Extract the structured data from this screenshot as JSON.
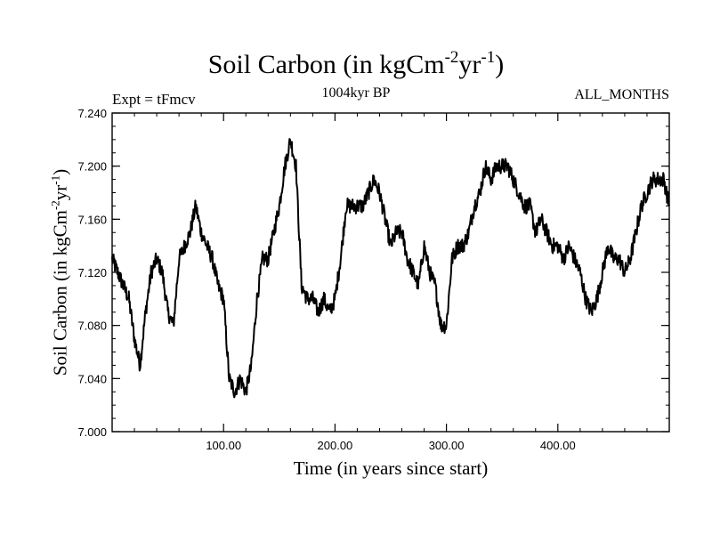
{
  "chart_data": {
    "type": "line",
    "title": {
      "text": "Soil Carbon (in kgCm",
      "sup1": "-2",
      "mid": "yr",
      "sup2": "-1",
      "end": ")"
    },
    "subtitle": "1004kyr BP",
    "left_annotation": "Expt = tFmcv",
    "right_annotation": "ALL_MONTHS",
    "xlabel": "Time (in years since start)",
    "ylabel": {
      "text": "Soil Carbon (in kgCm",
      "sup1": "-2",
      "mid": "yr",
      "sup2": "-1",
      "end": ")"
    },
    "xlim": [
      0,
      500
    ],
    "ylim": [
      7.0,
      7.24
    ],
    "x_ticks": [
      100,
      200,
      300,
      400
    ],
    "x_tick_labels": [
      "100.00",
      "200.00",
      "300.00",
      "400.00"
    ],
    "y_ticks": [
      7.0,
      7.04,
      7.08,
      7.12,
      7.16,
      7.2,
      7.24
    ],
    "y_tick_labels": [
      "7.000",
      "7.040",
      "7.080",
      "7.120",
      "7.160",
      "7.200",
      "7.240"
    ],
    "series": [
      {
        "name": "Soil Carbon",
        "color": "#000000",
        "x": [
          0,
          5,
          10,
          15,
          20,
          25,
          30,
          35,
          40,
          45,
          50,
          55,
          60,
          65,
          70,
          75,
          80,
          85,
          90,
          95,
          100,
          105,
          110,
          115,
          120,
          125,
          130,
          135,
          140,
          145,
          150,
          155,
          160,
          165,
          170,
          175,
          180,
          185,
          190,
          195,
          200,
          205,
          210,
          215,
          220,
          225,
          230,
          235,
          240,
          245,
          250,
          255,
          260,
          265,
          270,
          275,
          280,
          285,
          290,
          295,
          300,
          305,
          310,
          315,
          320,
          325,
          330,
          335,
          340,
          345,
          350,
          355,
          360,
          365,
          370,
          375,
          380,
          385,
          390,
          395,
          400,
          405,
          410,
          415,
          420,
          425,
          430,
          435,
          440,
          445,
          450,
          455,
          460,
          465,
          470,
          475,
          480,
          485,
          490,
          495,
          500
        ],
        "y": [
          7.13,
          7.12,
          7.11,
          7.1,
          7.07,
          7.05,
          7.09,
          7.12,
          7.13,
          7.12,
          7.09,
          7.08,
          7.13,
          7.14,
          7.15,
          7.17,
          7.15,
          7.14,
          7.13,
          7.11,
          7.1,
          7.04,
          7.03,
          7.04,
          7.03,
          7.05,
          7.1,
          7.13,
          7.13,
          7.15,
          7.17,
          7.2,
          7.22,
          7.2,
          7.11,
          7.1,
          7.1,
          7.09,
          7.1,
          7.09,
          7.1,
          7.13,
          7.17,
          7.17,
          7.17,
          7.17,
          7.18,
          7.19,
          7.18,
          7.16,
          7.14,
          7.15,
          7.15,
          7.13,
          7.12,
          7.11,
          7.14,
          7.12,
          7.11,
          7.08,
          7.08,
          7.13,
          7.14,
          7.14,
          7.15,
          7.17,
          7.18,
          7.2,
          7.19,
          7.2,
          7.2,
          7.2,
          7.19,
          7.18,
          7.17,
          7.17,
          7.15,
          7.16,
          7.15,
          7.14,
          7.14,
          7.13,
          7.14,
          7.13,
          7.12,
          7.1,
          7.09,
          7.1,
          7.12,
          7.14,
          7.13,
          7.13,
          7.12,
          7.13,
          7.15,
          7.17,
          7.18,
          7.19,
          7.19,
          7.19,
          7.17
        ]
      }
    ]
  }
}
